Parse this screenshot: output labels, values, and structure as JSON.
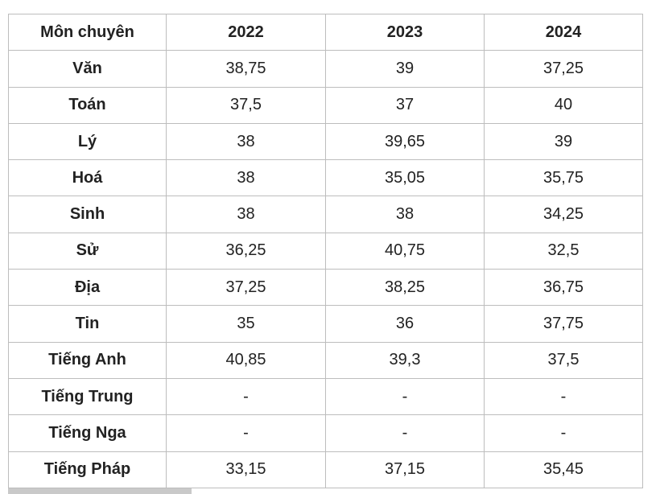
{
  "table": {
    "header": [
      "Môn chuyên",
      "2022",
      "2023",
      "2024"
    ],
    "rows": [
      [
        "Văn",
        "38,75",
        "39",
        "37,25"
      ],
      [
        "Toán",
        "37,5",
        "37",
        "40"
      ],
      [
        "Lý",
        "38",
        "39,65",
        "39"
      ],
      [
        "Hoá",
        "38",
        "35,05",
        "35,75"
      ],
      [
        "Sinh",
        "38",
        "38",
        "34,25"
      ],
      [
        "Sử",
        "36,25",
        "40,75",
        "32,5"
      ],
      [
        "Địa",
        "37,25",
        "38,25",
        "36,75"
      ],
      [
        "Tin",
        "35",
        "36",
        "37,75"
      ],
      [
        "Tiếng Anh",
        "40,85",
        "39,3",
        "37,5"
      ],
      [
        "Tiếng Trung",
        "-",
        "-",
        "-"
      ],
      [
        "Tiếng Nga",
        "-",
        "-",
        "-"
      ],
      [
        "Tiếng Pháp",
        "33,15",
        "37,15",
        "35,45"
      ]
    ]
  }
}
